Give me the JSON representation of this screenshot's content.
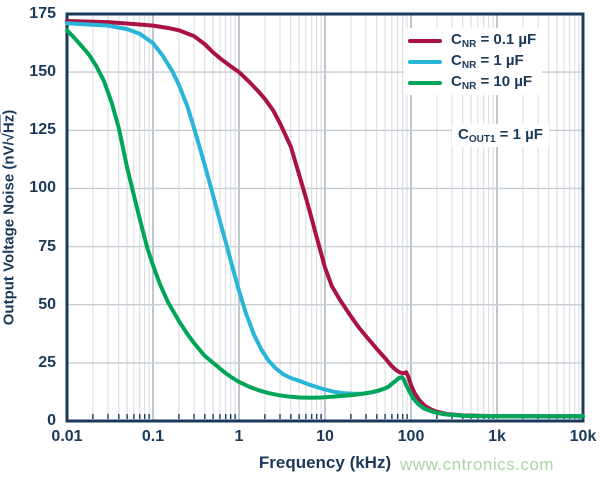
{
  "colors": {
    "navy": "#1b3a5a",
    "grid_minor": "#d5d8dd",
    "grid_major_v": "#a4aebb",
    "grid_major_h": "#c7cdd4",
    "red": "#a91245",
    "cyan": "#29b5d8",
    "green": "#00a558",
    "watermark": "#a9d6a2",
    "background": "#ffffff"
  },
  "watermark_text": "www.cntronics.com",
  "chart_data": {
    "type": "line",
    "title": "",
    "xlabel": "Frequency (kHz)",
    "ylabel_parts": {
      "pre": "Output Voltage Noise (nV/",
      "radical": "√",
      "rad_content": "Hz",
      "post": ")"
    },
    "x_scale": "log",
    "x_range": [
      0.01,
      10000
    ],
    "ylim": [
      0,
      175
    ],
    "x_tick_labels": [
      "0.01",
      "0.1",
      "1",
      "10",
      "100",
      "1k",
      "10k"
    ],
    "y_tick_labels": [
      "175",
      "150",
      "125",
      "100",
      "75",
      "50",
      "25",
      "0"
    ],
    "y_ticks": [
      0,
      25,
      50,
      75,
      100,
      125,
      150,
      175
    ],
    "grid": "on",
    "legend_position": "top-right",
    "annotation": {
      "pre": "C",
      "sub": "OUT1",
      "post": " = 1 µF"
    },
    "series": [
      {
        "name": "CNR = 0.1 uF",
        "label_pre": "C",
        "label_sub": "NR",
        "label_post": " = 0.1 µF",
        "color": "#a91245",
        "points": [
          [
            0.01,
            172
          ],
          [
            0.03,
            171.5
          ],
          [
            0.07,
            170.5
          ],
          [
            0.1,
            170
          ],
          [
            0.15,
            169
          ],
          [
            0.2,
            168
          ],
          [
            0.3,
            165.5
          ],
          [
            0.4,
            162
          ],
          [
            0.5,
            158.5
          ],
          [
            0.6,
            156
          ],
          [
            0.8,
            152.5
          ],
          [
            1,
            150
          ],
          [
            1.3,
            146
          ],
          [
            1.7,
            141.5
          ],
          [
            2,
            138.5
          ],
          [
            2.5,
            133.5
          ],
          [
            3,
            128
          ],
          [
            4,
            118
          ],
          [
            5,
            106
          ],
          [
            6,
            96
          ],
          [
            7,
            87
          ],
          [
            8,
            79
          ],
          [
            10,
            66
          ],
          [
            12,
            58
          ],
          [
            15,
            52
          ],
          [
            20,
            45
          ],
          [
            25,
            40
          ],
          [
            30,
            36.5
          ],
          [
            40,
            31
          ],
          [
            50,
            27
          ],
          [
            60,
            23.5
          ],
          [
            68,
            21.7
          ],
          [
            75,
            20.8
          ],
          [
            82,
            20.5
          ],
          [
            88,
            21
          ],
          [
            93,
            19
          ],
          [
            100,
            15.5
          ],
          [
            110,
            12
          ],
          [
            125,
            9
          ],
          [
            145,
            6.5
          ],
          [
            170,
            5
          ],
          [
            200,
            4
          ],
          [
            260,
            3
          ],
          [
            400,
            2.4
          ],
          [
            700,
            2.2
          ],
          [
            1000,
            2.1
          ],
          [
            3000,
            2
          ],
          [
            10000,
            2
          ]
        ]
      },
      {
        "name": "CNR = 1 uF",
        "label_pre": "C",
        "label_sub": "NR",
        "label_post": " = 1 µF",
        "color": "#29b5d8",
        "points": [
          [
            0.01,
            171
          ],
          [
            0.03,
            170
          ],
          [
            0.05,
            168.5
          ],
          [
            0.07,
            166.5
          ],
          [
            0.1,
            162.5
          ],
          [
            0.13,
            157
          ],
          [
            0.17,
            150
          ],
          [
            0.2,
            144.5
          ],
          [
            0.25,
            135.5
          ],
          [
            0.3,
            126
          ],
          [
            0.35,
            117.5
          ],
          [
            0.4,
            110
          ],
          [
            0.5,
            97
          ],
          [
            0.6,
            86
          ],
          [
            0.7,
            77
          ],
          [
            0.85,
            65.5
          ],
          [
            1,
            56
          ],
          [
            1.2,
            46.5
          ],
          [
            1.5,
            37
          ],
          [
            1.8,
            31
          ],
          [
            2.2,
            26
          ],
          [
            2.7,
            22.5
          ],
          [
            3.3,
            20
          ],
          [
            4,
            18.5
          ],
          [
            5,
            17.3
          ],
          [
            6.5,
            15.7
          ],
          [
            8,
            14.6
          ],
          [
            10,
            13.5
          ],
          [
            13,
            12.5
          ],
          [
            17,
            11.9
          ],
          [
            22,
            11.7
          ],
          [
            28,
            11.8
          ],
          [
            35,
            12.3
          ],
          [
            42,
            13
          ],
          [
            50,
            14
          ],
          [
            55,
            14.8
          ],
          [
            60,
            16
          ],
          [
            65,
            17
          ],
          [
            70,
            18
          ],
          [
            74,
            18.6
          ],
          [
            78,
            18.8
          ],
          [
            82,
            18
          ],
          [
            88,
            15.5
          ],
          [
            95,
            13
          ],
          [
            105,
            10
          ],
          [
            120,
            7.5
          ],
          [
            140,
            5.5
          ],
          [
            170,
            4.3
          ],
          [
            200,
            3.5
          ],
          [
            260,
            2.8
          ],
          [
            400,
            2.3
          ],
          [
            700,
            2.1
          ],
          [
            1000,
            2
          ],
          [
            3000,
            2
          ],
          [
            10000,
            2
          ]
        ]
      },
      {
        "name": "CNR = 10 uF",
        "label_pre": "C",
        "label_sub": "NR",
        "label_post": " = 10 µF",
        "color": "#00a558",
        "points": [
          [
            0.01,
            168
          ],
          [
            0.012,
            165
          ],
          [
            0.015,
            161
          ],
          [
            0.018,
            157.5
          ],
          [
            0.022,
            152.5
          ],
          [
            0.027,
            146
          ],
          [
            0.033,
            137
          ],
          [
            0.04,
            126
          ],
          [
            0.05,
            109
          ],
          [
            0.06,
            97
          ],
          [
            0.07,
            87
          ],
          [
            0.085,
            75
          ],
          [
            0.1,
            67
          ],
          [
            0.12,
            59
          ],
          [
            0.15,
            51
          ],
          [
            0.2,
            43
          ],
          [
            0.25,
            37.5
          ],
          [
            0.3,
            33.5
          ],
          [
            0.4,
            28
          ],
          [
            0.5,
            25
          ],
          [
            0.65,
            21.5
          ],
          [
            0.8,
            19
          ],
          [
            1,
            16.8
          ],
          [
            1.3,
            14.8
          ],
          [
            1.7,
            13.2
          ],
          [
            2.2,
            12
          ],
          [
            3,
            11
          ],
          [
            4,
            10.4
          ],
          [
            5,
            10.1
          ],
          [
            7,
            10
          ],
          [
            9,
            10.1
          ],
          [
            12,
            10.4
          ],
          [
            16,
            10.8
          ],
          [
            21,
            11.2
          ],
          [
            28,
            11.8
          ],
          [
            35,
            12.4
          ],
          [
            42,
            13.1
          ],
          [
            50,
            14
          ],
          [
            55,
            14.8
          ],
          [
            60,
            16
          ],
          [
            65,
            17
          ],
          [
            70,
            18
          ],
          [
            74,
            18.6
          ],
          [
            78,
            18.8
          ],
          [
            82,
            18
          ],
          [
            88,
            15.5
          ],
          [
            95,
            13
          ],
          [
            105,
            10
          ],
          [
            120,
            7.5
          ],
          [
            140,
            5.5
          ],
          [
            170,
            4.3
          ],
          [
            200,
            3.5
          ],
          [
            260,
            2.8
          ],
          [
            400,
            2.3
          ],
          [
            700,
            2.1
          ],
          [
            1000,
            2
          ],
          [
            3000,
            2
          ],
          [
            10000,
            2
          ]
        ]
      }
    ]
  }
}
